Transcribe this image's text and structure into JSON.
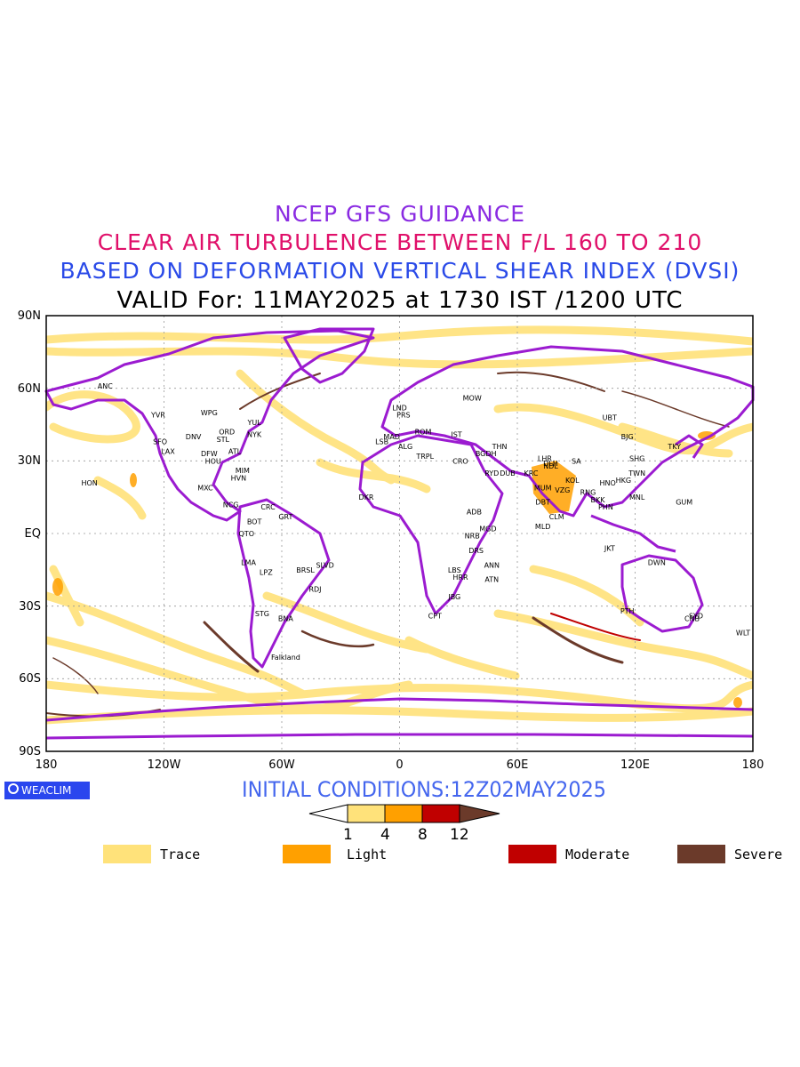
{
  "titles": {
    "line1": "NCEP GFS GUIDANCE",
    "line2": "CLEAR AIR TURBULENCE BETWEEN F/L 160 TO 210",
    "line3": "BASED ON DEFORMATION VERTICAL SHEAR INDEX (DVSI)",
    "line4": "VALID For: 11MAY2025 at 1730 IST /1200 UTC"
  },
  "axes": {
    "y_labels": [
      "90N",
      "60N",
      "30N",
      "EQ",
      "30S",
      "60S",
      "90S"
    ],
    "x_labels": [
      "180",
      "120W",
      "60W",
      "0",
      "60E",
      "120E",
      "180"
    ]
  },
  "cities": [
    {
      "name": "ANC",
      "lon": -150,
      "lat": 61
    },
    {
      "name": "YVR",
      "lon": -123,
      "lat": 49
    },
    {
      "name": "WPG",
      "lon": -97,
      "lat": 50
    },
    {
      "name": "YUL",
      "lon": -74,
      "lat": 46
    },
    {
      "name": "SFO",
      "lon": -122,
      "lat": 38
    },
    {
      "name": "LAX",
      "lon": -118,
      "lat": 34
    },
    {
      "name": "DNV",
      "lon": -105,
      "lat": 40
    },
    {
      "name": "ORD",
      "lon": -88,
      "lat": 42
    },
    {
      "name": "NYK",
      "lon": -74,
      "lat": 41
    },
    {
      "name": "STL",
      "lon": -90,
      "lat": 39
    },
    {
      "name": "DFW",
      "lon": -97,
      "lat": 33
    },
    {
      "name": "ATL",
      "lon": -84,
      "lat": 34
    },
    {
      "name": "HOU",
      "lon": -95,
      "lat": 30
    },
    {
      "name": "MIM",
      "lon": -80,
      "lat": 26
    },
    {
      "name": "HVN",
      "lon": -82,
      "lat": 23
    },
    {
      "name": "MXC",
      "lon": -99,
      "lat": 19
    },
    {
      "name": "HON",
      "lon": -158,
      "lat": 21
    },
    {
      "name": "NCG",
      "lon": -86,
      "lat": 12
    },
    {
      "name": "CRC",
      "lon": -67,
      "lat": 11
    },
    {
      "name": "BOT",
      "lon": -74,
      "lat": 5
    },
    {
      "name": "QTO",
      "lon": -78,
      "lat": 0
    },
    {
      "name": "GRT",
      "lon": -58,
      "lat": 7
    },
    {
      "name": "LMA",
      "lon": -77,
      "lat": -12
    },
    {
      "name": "LPZ",
      "lon": -68,
      "lat": -16
    },
    {
      "name": "BRSL",
      "lon": -48,
      "lat": -15
    },
    {
      "name": "SLVD",
      "lon": -38,
      "lat": -13
    },
    {
      "name": "RDJ",
      "lon": -43,
      "lat": -23
    },
    {
      "name": "STG",
      "lon": -70,
      "lat": -33
    },
    {
      "name": "BNA",
      "lon": -58,
      "lat": -35
    },
    {
      "name": "Falkland",
      "lon": -58,
      "lat": -51
    },
    {
      "name": "LND",
      "lon": 0,
      "lat": 52
    },
    {
      "name": "PRS",
      "lon": 2,
      "lat": 49
    },
    {
      "name": "MAD",
      "lon": -4,
      "lat": 40
    },
    {
      "name": "LSB",
      "lon": -9,
      "lat": 38
    },
    {
      "name": "ALG",
      "lon": 3,
      "lat": 36
    },
    {
      "name": "ROM",
      "lon": 12,
      "lat": 42
    },
    {
      "name": "TRPL",
      "lon": 13,
      "lat": 32
    },
    {
      "name": "IST",
      "lon": 29,
      "lat": 41
    },
    {
      "name": "MOW",
      "lon": 37,
      "lat": 56
    },
    {
      "name": "CRO",
      "lon": 31,
      "lat": 30
    },
    {
      "name": "BGDH",
      "lon": 44,
      "lat": 33
    },
    {
      "name": "THN",
      "lon": 51,
      "lat": 36
    },
    {
      "name": "RYD",
      "lon": 47,
      "lat": 25
    },
    {
      "name": "DUB",
      "lon": 55,
      "lat": 25
    },
    {
      "name": "KRC",
      "lon": 67,
      "lat": 25
    },
    {
      "name": "DKR",
      "lon": -17,
      "lat": 15
    },
    {
      "name": "ADB",
      "lon": 38,
      "lat": 9
    },
    {
      "name": "MGD",
      "lon": 45,
      "lat": 2
    },
    {
      "name": "NRB",
      "lon": 37,
      "lat": -1
    },
    {
      "name": "DRS",
      "lon": 39,
      "lat": -7
    },
    {
      "name": "LBS",
      "lon": 28,
      "lat": -15
    },
    {
      "name": "HRR",
      "lon": 31,
      "lat": -18
    },
    {
      "name": "ANN",
      "lon": 47,
      "lat": -13
    },
    {
      "name": "ATN",
      "lon": 47,
      "lat": -19
    },
    {
      "name": "JBG",
      "lon": 28,
      "lat": -26
    },
    {
      "name": "CPT",
      "lon": 18,
      "lat": -34
    },
    {
      "name": "DLH",
      "lon": 77,
      "lat": 29
    },
    {
      "name": "LHR",
      "lon": 74,
      "lat": 31
    },
    {
      "name": "NDL",
      "lon": 77,
      "lat": 28
    },
    {
      "name": "MUM",
      "lon": 73,
      "lat": 19
    },
    {
      "name": "VZG",
      "lon": 83,
      "lat": 18
    },
    {
      "name": "KOL",
      "lon": 88,
      "lat": 22
    },
    {
      "name": "DBT",
      "lon": 73,
      "lat": 13
    },
    {
      "name": "CLM",
      "lon": 80,
      "lat": 7
    },
    {
      "name": "MLD",
      "lon": 73,
      "lat": 3
    },
    {
      "name": "SA",
      "lon": 90,
      "lat": 30
    },
    {
      "name": "RNG",
      "lon": 96,
      "lat": 17
    },
    {
      "name": "HNO",
      "lon": 106,
      "lat": 21
    },
    {
      "name": "BKK",
      "lon": 101,
      "lat": 14
    },
    {
      "name": "PHN",
      "lon": 105,
      "lat": 11
    },
    {
      "name": "UBT",
      "lon": 107,
      "lat": 48
    },
    {
      "name": "BJG",
      "lon": 116,
      "lat": 40
    },
    {
      "name": "SHG",
      "lon": 121,
      "lat": 31
    },
    {
      "name": "TWN",
      "lon": 121,
      "lat": 25
    },
    {
      "name": "HKG",
      "lon": 114,
      "lat": 22
    },
    {
      "name": "MNL",
      "lon": 121,
      "lat": 15
    },
    {
      "name": "TKY",
      "lon": 140,
      "lat": 36
    },
    {
      "name": "GUM",
      "lon": 145,
      "lat": 13
    },
    {
      "name": "JKT",
      "lon": 107,
      "lat": -6
    },
    {
      "name": "DWN",
      "lon": 131,
      "lat": -12
    },
    {
      "name": "PTH",
      "lon": 116,
      "lat": -32
    },
    {
      "name": "SYD",
      "lon": 151,
      "lat": -34
    },
    {
      "name": "CNB",
      "lon": 149,
      "lat": -35
    },
    {
      "name": "WLT",
      "lon": 175,
      "lat": -41
    }
  ],
  "initial_conditions": "INITIAL CONDITIONS:12Z02MAY2025",
  "logo_text": "WEACLIM",
  "colorbar": {
    "ticks": [
      "1",
      "4",
      "8",
      "12"
    ],
    "colors": {
      "trace": "#ffe27a",
      "light": "#ffa000",
      "moderate": "#c00000",
      "severe": "#6b3a2a"
    }
  },
  "legend": [
    {
      "label": "Trace",
      "color": "#ffe27a"
    },
    {
      "label": "Light",
      "color": "#ffa000"
    },
    {
      "label": "Moderate",
      "color": "#c00000"
    },
    {
      "label": "Severe",
      "color": "#6b3a2a"
    }
  ]
}
